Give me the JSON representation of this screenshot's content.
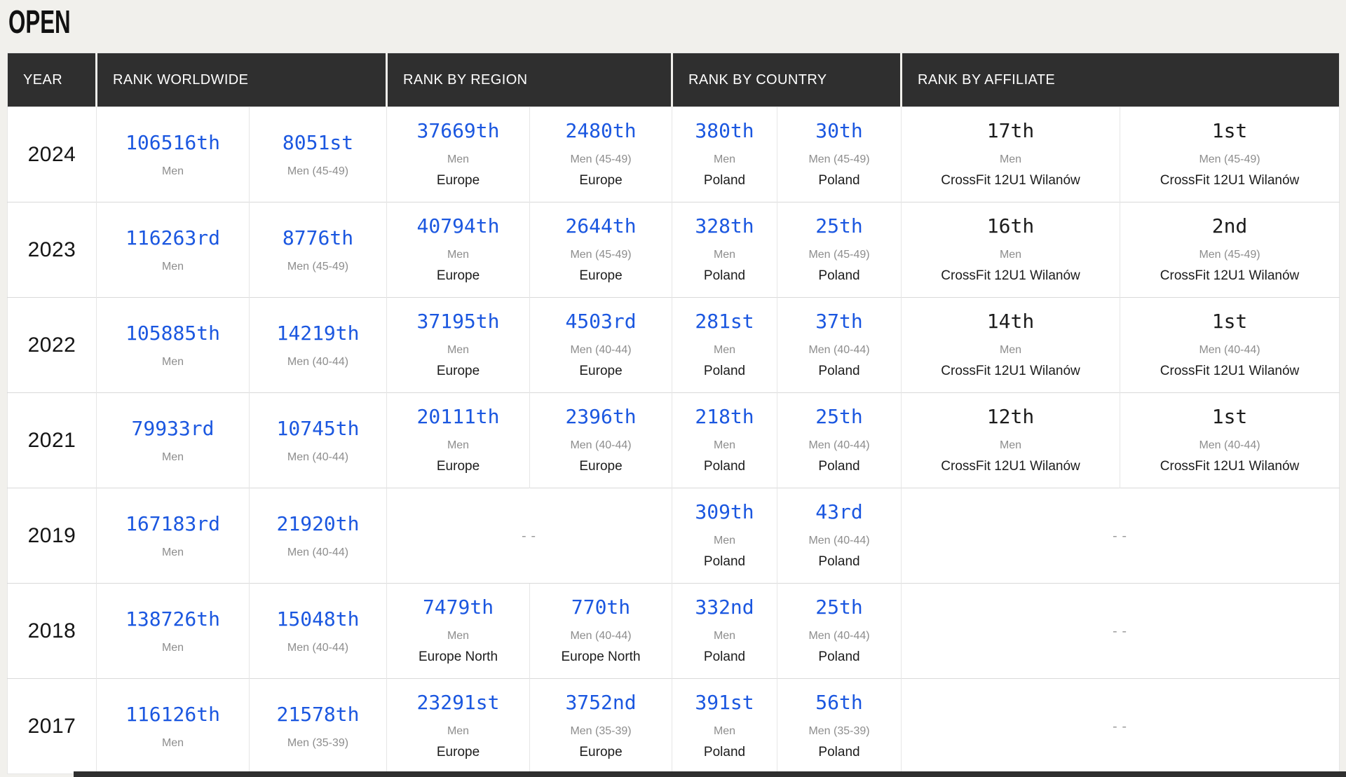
{
  "page": {
    "title": "OPEN",
    "empty_placeholder": "--",
    "background_color": "#f1f0ec",
    "header_bg_color": "#2f2f2f",
    "link_color": "#1b57e0"
  },
  "table": {
    "columns": [
      {
        "label": "YEAR"
      },
      {
        "label": "RANK WORLDWIDE"
      },
      {
        "label": "RANK BY REGION"
      },
      {
        "label": "RANK BY COUNTRY"
      },
      {
        "label": "RANK BY AFFILIATE"
      }
    ],
    "rows": [
      {
        "year": "2024",
        "worldwide": [
          {
            "rank": "106516th",
            "division": "Men"
          },
          {
            "rank": "8051st",
            "division": "Men (45-49)"
          }
        ],
        "region": [
          {
            "rank": "37669th",
            "division": "Men",
            "location": "Europe"
          },
          {
            "rank": "2480th",
            "division": "Men (45-49)",
            "location": "Europe"
          }
        ],
        "country": [
          {
            "rank": "380th",
            "division": "Men",
            "location": "Poland"
          },
          {
            "rank": "30th",
            "division": "Men (45-49)",
            "location": "Poland"
          }
        ],
        "affiliate": [
          {
            "rank": "17th",
            "division": "Men",
            "location": "CrossFit 12U1 Wilanów"
          },
          {
            "rank": "1st",
            "division": "Men (45-49)",
            "location": "CrossFit 12U1 Wilanów"
          }
        ]
      },
      {
        "year": "2023",
        "worldwide": [
          {
            "rank": "116263rd",
            "division": "Men"
          },
          {
            "rank": "8776th",
            "division": "Men (45-49)"
          }
        ],
        "region": [
          {
            "rank": "40794th",
            "division": "Men",
            "location": "Europe"
          },
          {
            "rank": "2644th",
            "division": "Men (45-49)",
            "location": "Europe"
          }
        ],
        "country": [
          {
            "rank": "328th",
            "division": "Men",
            "location": "Poland"
          },
          {
            "rank": "25th",
            "division": "Men (45-49)",
            "location": "Poland"
          }
        ],
        "affiliate": [
          {
            "rank": "16th",
            "division": "Men",
            "location": "CrossFit 12U1 Wilanów"
          },
          {
            "rank": "2nd",
            "division": "Men (45-49)",
            "location": "CrossFit 12U1 Wilanów"
          }
        ]
      },
      {
        "year": "2022",
        "worldwide": [
          {
            "rank": "105885th",
            "division": "Men"
          },
          {
            "rank": "14219th",
            "division": "Men (40-44)"
          }
        ],
        "region": [
          {
            "rank": "37195th",
            "division": "Men",
            "location": "Europe"
          },
          {
            "rank": "4503rd",
            "division": "Men (40-44)",
            "location": "Europe"
          }
        ],
        "country": [
          {
            "rank": "281st",
            "division": "Men",
            "location": "Poland"
          },
          {
            "rank": "37th",
            "division": "Men (40-44)",
            "location": "Poland"
          }
        ],
        "affiliate": [
          {
            "rank": "14th",
            "division": "Men",
            "location": "CrossFit 12U1 Wilanów"
          },
          {
            "rank": "1st",
            "division": "Men (40-44)",
            "location": "CrossFit 12U1 Wilanów"
          }
        ]
      },
      {
        "year": "2021",
        "worldwide": [
          {
            "rank": "79933rd",
            "division": "Men"
          },
          {
            "rank": "10745th",
            "division": "Men (40-44)"
          }
        ],
        "region": [
          {
            "rank": "20111th",
            "division": "Men",
            "location": "Europe"
          },
          {
            "rank": "2396th",
            "division": "Men (40-44)",
            "location": "Europe"
          }
        ],
        "country": [
          {
            "rank": "218th",
            "division": "Men",
            "location": "Poland"
          },
          {
            "rank": "25th",
            "division": "Men (40-44)",
            "location": "Poland"
          }
        ],
        "affiliate": [
          {
            "rank": "12th",
            "division": "Men",
            "location": "CrossFit 12U1 Wilanów"
          },
          {
            "rank": "1st",
            "division": "Men (40-44)",
            "location": "CrossFit 12U1 Wilanów"
          }
        ]
      },
      {
        "year": "2019",
        "worldwide": [
          {
            "rank": "167183rd",
            "division": "Men"
          },
          {
            "rank": "21920th",
            "division": "Men (40-44)"
          }
        ],
        "region": null,
        "country": [
          {
            "rank": "309th",
            "division": "Men",
            "location": "Poland"
          },
          {
            "rank": "43rd",
            "division": "Men (40-44)",
            "location": "Poland"
          }
        ],
        "affiliate": null
      },
      {
        "year": "2018",
        "worldwide": [
          {
            "rank": "138726th",
            "division": "Men"
          },
          {
            "rank": "15048th",
            "division": "Men (40-44)"
          }
        ],
        "region": [
          {
            "rank": "7479th",
            "division": "Men",
            "location": "Europe North"
          },
          {
            "rank": "770th",
            "division": "Men (40-44)",
            "location": "Europe North"
          }
        ],
        "country": [
          {
            "rank": "332nd",
            "division": "Men",
            "location": "Poland"
          },
          {
            "rank": "25th",
            "division": "Men (40-44)",
            "location": "Poland"
          }
        ],
        "affiliate": null
      },
      {
        "year": "2017",
        "worldwide": [
          {
            "rank": "116126th",
            "division": "Men"
          },
          {
            "rank": "21578th",
            "division": "Men (35-39)"
          }
        ],
        "region": [
          {
            "rank": "23291st",
            "division": "Men",
            "location": "Europe"
          },
          {
            "rank": "3752nd",
            "division": "Men (35-39)",
            "location": "Europe"
          }
        ],
        "country": [
          {
            "rank": "391st",
            "division": "Men",
            "location": "Poland"
          },
          {
            "rank": "56th",
            "division": "Men (35-39)",
            "location": "Poland"
          }
        ],
        "affiliate": null
      }
    ]
  }
}
